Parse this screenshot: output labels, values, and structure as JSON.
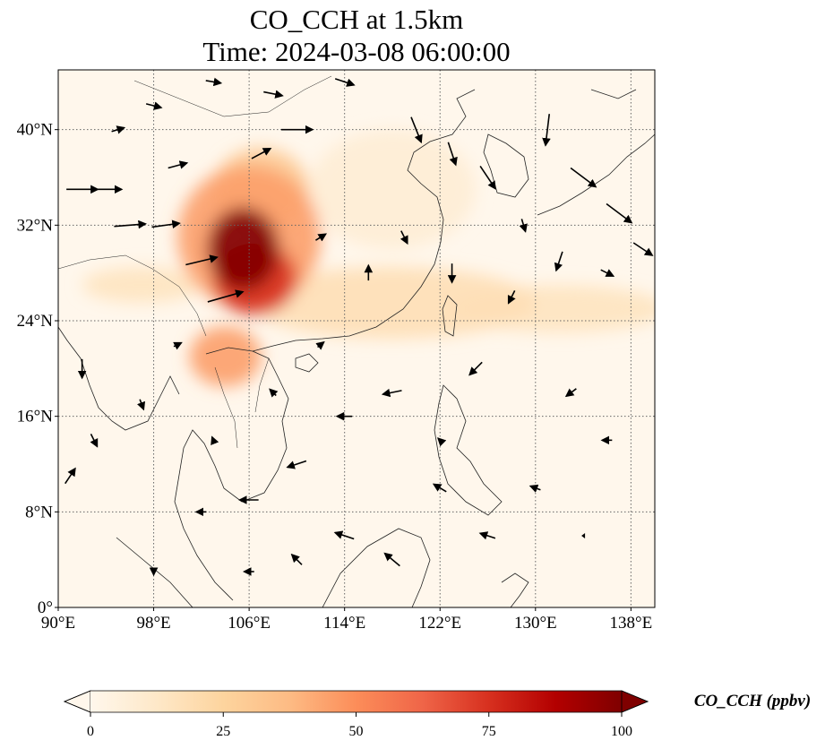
{
  "title": {
    "line1": "CO_CCH at 1.5km",
    "line2": "Time: 2024-03-08 06:00:00"
  },
  "map": {
    "lon_range": [
      90,
      140
    ],
    "lat_range": [
      0,
      45
    ],
    "lon_ticks": [
      {
        "value": 90,
        "label": "90°E"
      },
      {
        "value": 98,
        "label": "98°E"
      },
      {
        "value": 106,
        "label": "106°E"
      },
      {
        "value": 114,
        "label": "114°E"
      },
      {
        "value": 122,
        "label": "122°E"
      },
      {
        "value": 130,
        "label": "130°E"
      },
      {
        "value": 138,
        "label": "138°E"
      }
    ],
    "lat_ticks": [
      {
        "value": 0,
        "label": "0°"
      },
      {
        "value": 8,
        "label": "8°N"
      },
      {
        "value": 16,
        "label": "16°N"
      },
      {
        "value": 24,
        "label": "24°N"
      },
      {
        "value": 32,
        "label": "32°N"
      },
      {
        "value": 40,
        "label": "40°N"
      }
    ],
    "gridlines": true,
    "field_name": "CO_CCH",
    "plumes": [
      {
        "lon": 105.5,
        "lat": 30.0,
        "rlon": 3.0,
        "rlat": 3.5,
        "value": 100
      },
      {
        "lon": 106.5,
        "lat": 27.5,
        "rlon": 3.5,
        "rlat": 3.0,
        "value": 75
      },
      {
        "lon": 106.0,
        "lat": 31.0,
        "rlon": 6.0,
        "rlat": 6.0,
        "value": 45
      },
      {
        "lon": 107.0,
        "lat": 35.0,
        "rlon": 4.0,
        "rlat": 3.5,
        "value": 30
      },
      {
        "lon": 104.0,
        "lat": 21.0,
        "rlon": 3.0,
        "rlat": 2.5,
        "value": 45
      },
      {
        "lon": 118.0,
        "lat": 25.5,
        "rlon": 12.0,
        "rlat": 3.0,
        "value": 18
      },
      {
        "lon": 132.0,
        "lat": 25.0,
        "rlon": 9.0,
        "rlat": 2.0,
        "value": 15
      },
      {
        "lon": 97.0,
        "lat": 27.0,
        "rlon": 5.0,
        "rlat": 1.5,
        "value": 15
      },
      {
        "lon": 118.0,
        "lat": 35.0,
        "rlon": 7.0,
        "rlat": 5.0,
        "value": 8
      }
    ],
    "wind_vectors": [
      {
        "lon": 92,
        "lat": 35,
        "u": 2.5,
        "v": 0.0
      },
      {
        "lon": 94,
        "lat": 35,
        "u": 2.5,
        "v": 0.0
      },
      {
        "lon": 96,
        "lat": 32,
        "u": 2.5,
        "v": 0.2
      },
      {
        "lon": 99,
        "lat": 32,
        "u": 2.2,
        "v": 0.3
      },
      {
        "lon": 102,
        "lat": 29,
        "u": 2.5,
        "v": 0.6
      },
      {
        "lon": 104,
        "lat": 26,
        "u": 2.8,
        "v": 0.8
      },
      {
        "lon": 107,
        "lat": 38,
        "u": 1.5,
        "v": 0.8
      },
      {
        "lon": 110,
        "lat": 40,
        "u": 2.5,
        "v": 0.0
      },
      {
        "lon": 114,
        "lat": 44,
        "u": 1.5,
        "v": -0.5
      },
      {
        "lon": 120,
        "lat": 40,
        "u": 0.8,
        "v": -2.0
      },
      {
        "lon": 123,
        "lat": 38,
        "u": 0.6,
        "v": -1.8
      },
      {
        "lon": 126,
        "lat": 36,
        "u": 1.2,
        "v": -1.8
      },
      {
        "lon": 131,
        "lat": 40,
        "u": -0.3,
        "v": -2.5
      },
      {
        "lon": 134,
        "lat": 36,
        "u": 2.0,
        "v": -1.5
      },
      {
        "lon": 137,
        "lat": 33,
        "u": 2.0,
        "v": -1.5
      },
      {
        "lon": 139,
        "lat": 30,
        "u": 1.5,
        "v": -1.0
      },
      {
        "lon": 136,
        "lat": 28,
        "u": 1.0,
        "v": -0.5
      },
      {
        "lon": 132,
        "lat": 29,
        "u": -0.5,
        "v": -1.5
      },
      {
        "lon": 128,
        "lat": 26,
        "u": -0.5,
        "v": -1.0
      },
      {
        "lon": 125,
        "lat": 20,
        "u": -1.0,
        "v": -1.0
      },
      {
        "lon": 118,
        "lat": 18,
        "u": -1.5,
        "v": -0.3
      },
      {
        "lon": 114,
        "lat": 16,
        "u": -1.2,
        "v": 0.0
      },
      {
        "lon": 110,
        "lat": 12,
        "u": -1.5,
        "v": -0.5
      },
      {
        "lon": 106,
        "lat": 9,
        "u": -1.5,
        "v": 0.0
      },
      {
        "lon": 102,
        "lat": 8,
        "u": -0.8,
        "v": 0.0
      },
      {
        "lon": 114,
        "lat": 6,
        "u": -1.5,
        "v": 0.5
      },
      {
        "lon": 118,
        "lat": 4,
        "u": -1.2,
        "v": 1.0
      },
      {
        "lon": 126,
        "lat": 6,
        "u": -1.2,
        "v": 0.4
      },
      {
        "lon": 122,
        "lat": 10,
        "u": -1.0,
        "v": 0.6
      },
      {
        "lon": 92,
        "lat": 20,
        "u": 0.0,
        "v": -1.5
      },
      {
        "lon": 93,
        "lat": 14,
        "u": 0.5,
        "v": -1.0
      },
      {
        "lon": 91,
        "lat": 11,
        "u": 0.8,
        "v": 1.2
      },
      {
        "lon": 97,
        "lat": 17,
        "u": 0.3,
        "v": -0.8
      },
      {
        "lon": 100,
        "lat": 22,
        "u": 0.6,
        "v": 0.3
      },
      {
        "lon": 112,
        "lat": 22,
        "u": 0.5,
        "v": 0.4
      },
      {
        "lon": 116,
        "lat": 28,
        "u": 0.0,
        "v": 1.2
      },
      {
        "lon": 112,
        "lat": 31,
        "u": 0.8,
        "v": 0.5
      },
      {
        "lon": 119,
        "lat": 31,
        "u": 0.5,
        "v": -1.0
      },
      {
        "lon": 129,
        "lat": 32,
        "u": 0.3,
        "v": -1.0
      },
      {
        "lon": 123,
        "lat": 28,
        "u": 0.0,
        "v": -1.5
      },
      {
        "lon": 133,
        "lat": 18,
        "u": -0.8,
        "v": -0.6
      },
      {
        "lon": 136,
        "lat": 14,
        "u": -0.8,
        "v": 0.0
      },
      {
        "lon": 130,
        "lat": 10,
        "u": -0.8,
        "v": 0.3
      },
      {
        "lon": 134,
        "lat": 6,
        "u": 0.0,
        "v": 0.0
      },
      {
        "lon": 98,
        "lat": 42,
        "u": 1.2,
        "v": -0.3
      },
      {
        "lon": 103,
        "lat": 44,
        "u": 1.2,
        "v": -0.2
      },
      {
        "lon": 108,
        "lat": 43,
        "u": 1.5,
        "v": -0.3
      },
      {
        "lon": 95,
        "lat": 40,
        "u": 1.0,
        "v": 0.3
      },
      {
        "lon": 100,
        "lat": 37,
        "u": 1.5,
        "v": 0.4
      },
      {
        "lon": 108,
        "lat": 18,
        "u": -0.5,
        "v": 0.5
      },
      {
        "lon": 103,
        "lat": 14,
        "u": -0.2,
        "v": 0.5
      },
      {
        "lon": 98,
        "lat": 3,
        "u": 0.0,
        "v": -0.5
      },
      {
        "lon": 106,
        "lat": 3,
        "u": -0.8,
        "v": 0.0
      },
      {
        "lon": 110,
        "lat": 4,
        "u": -0.8,
        "v": 0.8
      },
      {
        "lon": 122,
        "lat": 14,
        "u": -0.3,
        "v": 0.3
      }
    ]
  },
  "colorbar": {
    "ticks": [
      "0",
      "25",
      "50",
      "75",
      "100"
    ],
    "tick_values": [
      0,
      25,
      50,
      75,
      100
    ],
    "range": [
      0,
      100
    ],
    "label": "CO_CCH (ppbv)",
    "extend": "both",
    "colors": [
      "#fff7ec",
      "#fee8c8",
      "#fdd49e",
      "#fdbb84",
      "#fc8d59",
      "#ef6548",
      "#d7301f",
      "#b30000",
      "#7f0000"
    ]
  }
}
